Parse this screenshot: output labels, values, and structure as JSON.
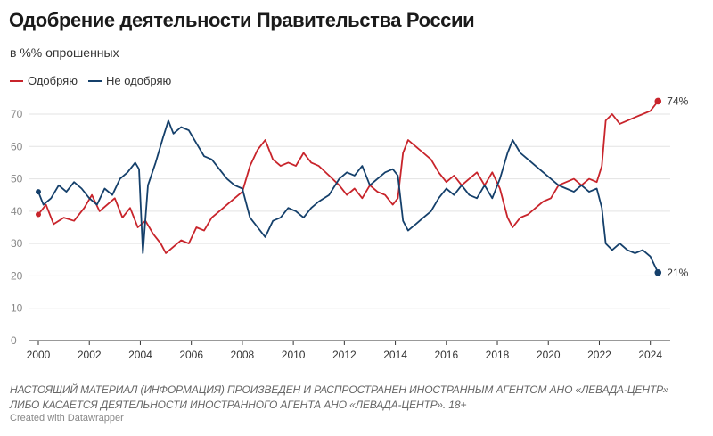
{
  "title": "Одобрение деятельности Правительства России",
  "subtitle": "в %% опрошенных",
  "legend": [
    {
      "label": "Одобряю",
      "color": "#c8242b"
    },
    {
      "label": "Не одобряю",
      "color": "#15406b"
    }
  ],
  "note": "НАСТОЯЩИЙ МАТЕРИАЛ (ИНФОРМАЦИЯ) ПРОИЗВЕДЕН И РАСПРОСТРАНЕН ИНОСТРАННЫМ АГЕНТОМ АНО «ЛЕВАДА-ЦЕНТР» ЛИБО КАСАЕТСЯ ДЕЯТЕЛЬНОСТИ ИНОСТРАННОГО АГЕНТА АНО «ЛЕВАДА-ЦЕНТР». 18+",
  "credit": "Created with Datawrapper",
  "chart_data": {
    "type": "line",
    "title": "Одобрение деятельности Правительства России",
    "subtitle": "в %% опрошенных",
    "xlabel": "",
    "ylabel": "",
    "xlim": [
      2000,
      2024.5
    ],
    "ylim": [
      0,
      70
    ],
    "y_ticks": [
      0,
      10,
      20,
      30,
      40,
      50,
      60,
      70
    ],
    "x_ticks": [
      2000,
      2002,
      2004,
      2006,
      2008,
      2010,
      2012,
      2014,
      2016,
      2018,
      2020,
      2022,
      2024
    ],
    "grid": "horizontal",
    "legend_position": "top-left",
    "end_labels": [
      "74%",
      "21%"
    ],
    "series": [
      {
        "name": "Одобряю",
        "color": "#c8242b",
        "points": [
          [
            2000.0,
            39
          ],
          [
            2000.3,
            42
          ],
          [
            2000.6,
            36
          ],
          [
            2001.0,
            38
          ],
          [
            2001.4,
            37
          ],
          [
            2001.8,
            41
          ],
          [
            2002.1,
            45
          ],
          [
            2002.4,
            40
          ],
          [
            2002.7,
            42
          ],
          [
            2003.0,
            44
          ],
          [
            2003.3,
            38
          ],
          [
            2003.6,
            41
          ],
          [
            2003.9,
            35
          ],
          [
            2004.2,
            37
          ],
          [
            2004.5,
            33
          ],
          [
            2004.8,
            30
          ],
          [
            2005.0,
            27
          ],
          [
            2005.3,
            29
          ],
          [
            2005.6,
            31
          ],
          [
            2005.9,
            30
          ],
          [
            2006.2,
            35
          ],
          [
            2006.5,
            34
          ],
          [
            2006.8,
            38
          ],
          [
            2007.1,
            40
          ],
          [
            2007.4,
            42
          ],
          [
            2007.7,
            44
          ],
          [
            2008.0,
            46
          ],
          [
            2008.3,
            54
          ],
          [
            2008.6,
            59
          ],
          [
            2008.9,
            62
          ],
          [
            2009.2,
            56
          ],
          [
            2009.5,
            54
          ],
          [
            2009.8,
            55
          ],
          [
            2010.1,
            54
          ],
          [
            2010.4,
            58
          ],
          [
            2010.7,
            55
          ],
          [
            2011.0,
            54
          ],
          [
            2011.4,
            51
          ],
          [
            2011.8,
            48
          ],
          [
            2012.1,
            45
          ],
          [
            2012.4,
            47
          ],
          [
            2012.7,
            44
          ],
          [
            2013.0,
            48
          ],
          [
            2013.3,
            46
          ],
          [
            2013.6,
            45
          ],
          [
            2013.9,
            42
          ],
          [
            2014.1,
            44
          ],
          [
            2014.3,
            58
          ],
          [
            2014.5,
            62
          ],
          [
            2014.8,
            60
          ],
          [
            2015.1,
            58
          ],
          [
            2015.4,
            56
          ],
          [
            2015.7,
            52
          ],
          [
            2016.0,
            49
          ],
          [
            2016.3,
            51
          ],
          [
            2016.6,
            48
          ],
          [
            2016.9,
            50
          ],
          [
            2017.2,
            52
          ],
          [
            2017.5,
            48
          ],
          [
            2017.8,
            52
          ],
          [
            2018.1,
            47
          ],
          [
            2018.4,
            38
          ],
          [
            2018.6,
            35
          ],
          [
            2018.9,
            38
          ],
          [
            2019.2,
            39
          ],
          [
            2019.5,
            41
          ],
          [
            2019.8,
            43
          ],
          [
            2020.1,
            44
          ],
          [
            2020.4,
            48
          ],
          [
            2020.7,
            49
          ],
          [
            2021.0,
            50
          ],
          [
            2021.3,
            48
          ],
          [
            2021.6,
            50
          ],
          [
            2021.9,
            49
          ],
          [
            2022.1,
            54
          ],
          [
            2022.25,
            68
          ],
          [
            2022.5,
            70
          ],
          [
            2022.8,
            67
          ],
          [
            2023.1,
            68
          ],
          [
            2023.4,
            69
          ],
          [
            2023.7,
            70
          ],
          [
            2024.0,
            71
          ],
          [
            2024.3,
            74
          ]
        ]
      },
      {
        "name": "Не одобряю",
        "color": "#15406b",
        "points": [
          [
            2000.0,
            46
          ],
          [
            2000.2,
            42
          ],
          [
            2000.5,
            44
          ],
          [
            2000.8,
            48
          ],
          [
            2001.1,
            46
          ],
          [
            2001.4,
            49
          ],
          [
            2001.7,
            47
          ],
          [
            2002.0,
            44
          ],
          [
            2002.3,
            42
          ],
          [
            2002.6,
            47
          ],
          [
            2002.9,
            45
          ],
          [
            2003.2,
            50
          ],
          [
            2003.5,
            52
          ],
          [
            2003.8,
            55
          ],
          [
            2003.95,
            53
          ],
          [
            2004.1,
            27
          ],
          [
            2004.3,
            48
          ],
          [
            2004.6,
            55
          ],
          [
            2004.9,
            63
          ],
          [
            2005.1,
            68
          ],
          [
            2005.3,
            64
          ],
          [
            2005.6,
            66
          ],
          [
            2005.9,
            65
          ],
          [
            2006.2,
            61
          ],
          [
            2006.5,
            57
          ],
          [
            2006.8,
            56
          ],
          [
            2007.1,
            53
          ],
          [
            2007.4,
            50
          ],
          [
            2007.7,
            48
          ],
          [
            2008.0,
            47
          ],
          [
            2008.3,
            38
          ],
          [
            2008.6,
            35
          ],
          [
            2008.9,
            32
          ],
          [
            2009.2,
            37
          ],
          [
            2009.5,
            38
          ],
          [
            2009.8,
            41
          ],
          [
            2010.1,
            40
          ],
          [
            2010.4,
            38
          ],
          [
            2010.7,
            41
          ],
          [
            2011.0,
            43
          ],
          [
            2011.4,
            45
          ],
          [
            2011.8,
            50
          ],
          [
            2012.1,
            52
          ],
          [
            2012.4,
            51
          ],
          [
            2012.7,
            54
          ],
          [
            2013.0,
            48
          ],
          [
            2013.3,
            50
          ],
          [
            2013.6,
            52
          ],
          [
            2013.9,
            53
          ],
          [
            2014.1,
            51
          ],
          [
            2014.3,
            37
          ],
          [
            2014.5,
            34
          ],
          [
            2014.8,
            36
          ],
          [
            2015.1,
            38
          ],
          [
            2015.4,
            40
          ],
          [
            2015.7,
            44
          ],
          [
            2016.0,
            47
          ],
          [
            2016.3,
            45
          ],
          [
            2016.6,
            48
          ],
          [
            2016.9,
            45
          ],
          [
            2017.2,
            44
          ],
          [
            2017.5,
            48
          ],
          [
            2017.8,
            44
          ],
          [
            2018.1,
            50
          ],
          [
            2018.4,
            58
          ],
          [
            2018.6,
            62
          ],
          [
            2018.9,
            58
          ],
          [
            2019.2,
            56
          ],
          [
            2019.5,
            54
          ],
          [
            2019.8,
            52
          ],
          [
            2020.1,
            50
          ],
          [
            2020.4,
            48
          ],
          [
            2020.7,
            47
          ],
          [
            2021.0,
            46
          ],
          [
            2021.3,
            48
          ],
          [
            2021.6,
            46
          ],
          [
            2021.9,
            47
          ],
          [
            2022.1,
            41
          ],
          [
            2022.25,
            30
          ],
          [
            2022.5,
            28
          ],
          [
            2022.8,
            30
          ],
          [
            2023.1,
            28
          ],
          [
            2023.4,
            27
          ],
          [
            2023.7,
            28
          ],
          [
            2024.0,
            26
          ],
          [
            2024.3,
            21
          ]
        ]
      }
    ]
  }
}
